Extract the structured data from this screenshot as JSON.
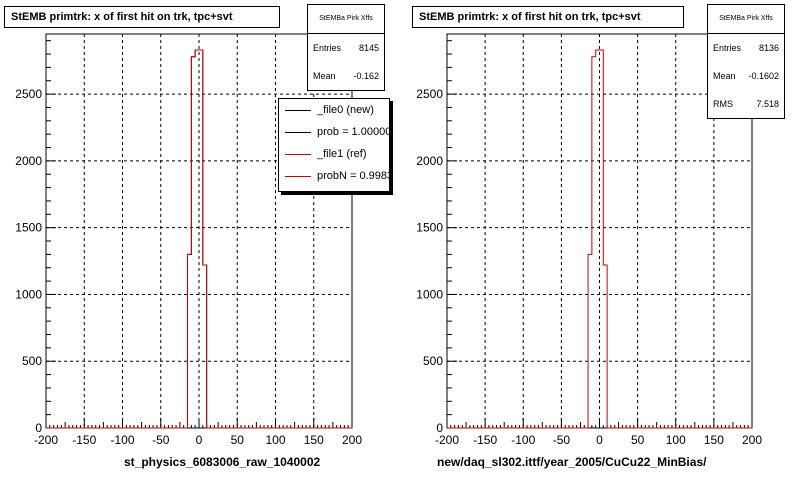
{
  "chart_data": [
    {
      "type": "bar",
      "title": "StEMB primtrk: x of first hit on trk, tpc+svt",
      "xlabel": "st_physics_6083006_raw_1040002",
      "ylabel": "",
      "xlim": [
        -200,
        200
      ],
      "ylim": [
        0,
        2950
      ],
      "xticks": [
        -200,
        -150,
        -100,
        -50,
        0,
        50,
        100,
        150,
        200
      ],
      "yticks": [
        0,
        500,
        1000,
        1500,
        2000,
        2500
      ],
      "grid": true,
      "bin_width": 5,
      "bin_edges": [
        -15,
        -10,
        -5,
        0,
        5,
        10,
        15
      ],
      "series": [
        {
          "name": "_file0 (new)",
          "color": "#000000",
          "values": [
            1300,
            2780,
            2830,
            2830,
            1220,
            0
          ]
        },
        {
          "name": "_file1 (ref)",
          "color": "#cc0000",
          "values": [
            1300,
            2780,
            2830,
            2830,
            1220,
            0
          ]
        }
      ],
      "stats": {
        "title": "StEMBa Pirk Xffs",
        "entries_label": "Entries",
        "entries": "8145",
        "mean_label": "Mean",
        "mean": "-0.162"
      },
      "legend": {
        "placement": "top-right",
        "entries": [
          {
            "label": "_file0 (new)",
            "color": "#000000"
          },
          {
            "label": "prob = 1.000000",
            "color": "#000000"
          },
          {
            "label": "_file1 (ref)",
            "color": "#cc0000"
          },
          {
            "label": "probN = 0.99838",
            "color": "#cc0000"
          }
        ]
      }
    },
    {
      "type": "bar",
      "title": "StEMB primtrk: x of first hit on trk, tpc+svt",
      "xlabel": "new/daq_sl302.ittf/year_2005/CuCu22_MinBias/",
      "ylabel": "",
      "xlim": [
        -200,
        200
      ],
      "ylim": [
        0,
        2950
      ],
      "xticks": [
        -200,
        -150,
        -100,
        -50,
        0,
        50,
        100,
        150,
        200
      ],
      "yticks": [
        0,
        500,
        1000,
        1500,
        2000,
        2500
      ],
      "grid": true,
      "bin_width": 5,
      "bin_edges": [
        -15,
        -10,
        -5,
        0,
        5,
        10,
        15
      ],
      "series": [
        {
          "name": "",
          "color": "#cc0000",
          "values": [
            1300,
            2780,
            2830,
            2830,
            1220,
            0
          ]
        }
      ],
      "stats": {
        "title": "StEMBa Pirk Xffs",
        "entries_label": "Entries",
        "entries": "8136",
        "mean_label": "Mean",
        "mean": "-0.1602",
        "rms_label": "RMS",
        "rms": "7.518"
      }
    }
  ]
}
